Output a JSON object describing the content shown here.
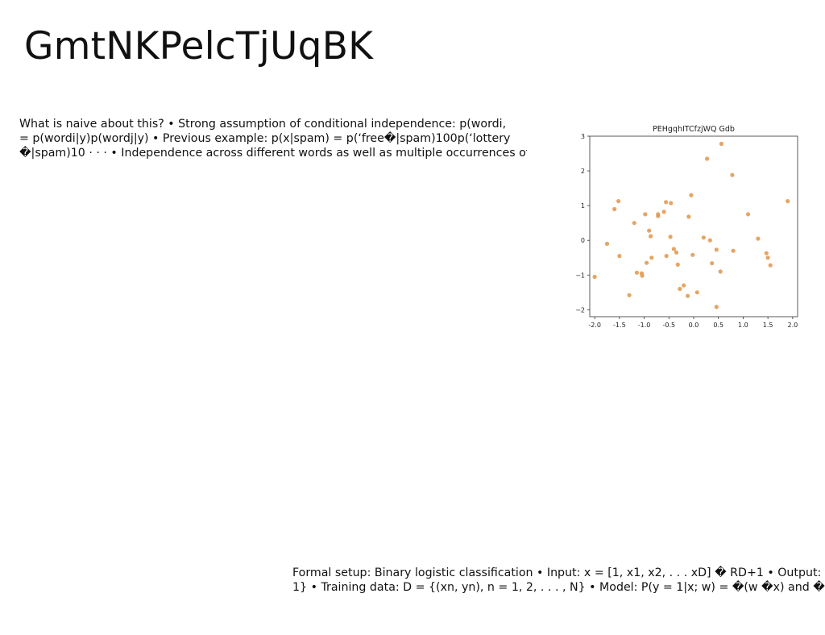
{
  "slide": {
    "title": "GmtNKPelcTjUqBK",
    "paragraph1": [
      "What is naive about this? • Strong assumption of conditional independence: p(wordi,",
      "= p(wordi|y)p(wordj|y) • Previous example: p(x|spam) = p(‘free�|spam)100p(‘lottery",
      "�|spam)10 · · · • Independence across different words as well as multiple occurrences of"
    ],
    "paragraph2": [
      "Formal setup: Binary logistic classification • Input: x = [1, x1, x2, . . . xD] � RD+1 • Output: y �",
      "1} • Training data: D = {(xn, yn), n = 1, 2, . . . , N} • Model: P(y = 1|x; w) = �(w �x) and �[·] stands"
    ]
  },
  "chart_data": {
    "type": "scatter",
    "title": "PEHgqhITCfzjWQ Gdb",
    "xlabel": "",
    "ylabel": "",
    "xlim": [
      -2.1,
      2.1
    ],
    "ylim": [
      -2.2,
      3.0
    ],
    "xticks": [
      "-2.0",
      "-1.5",
      "-1.0",
      "-0.5",
      "0.0",
      "0.5",
      "1.0",
      "1.5",
      "2.0"
    ],
    "yticks": [
      "3",
      "2",
      "1",
      "0",
      "−1",
      "−2"
    ],
    "grid": false,
    "color": "#e0954a",
    "points": [
      [
        -2.0,
        -1.05
      ],
      [
        -1.75,
        -0.1
      ],
      [
        -1.6,
        0.9
      ],
      [
        -1.52,
        1.13
      ],
      [
        -1.5,
        -0.45
      ],
      [
        -1.3,
        -1.58
      ],
      [
        -1.2,
        0.5
      ],
      [
        -1.15,
        -0.93
      ],
      [
        -1.05,
        -0.95
      ],
      [
        -1.04,
        -1.02
      ],
      [
        -0.98,
        0.75
      ],
      [
        -0.95,
        -0.65
      ],
      [
        -0.9,
        0.28
      ],
      [
        -0.87,
        0.12
      ],
      [
        -0.85,
        -0.5
      ],
      [
        -0.72,
        0.75
      ],
      [
        -0.72,
        0.7
      ],
      [
        -0.6,
        0.82
      ],
      [
        -0.56,
        1.1
      ],
      [
        -0.55,
        -0.45
      ],
      [
        -0.47,
        0.1
      ],
      [
        -0.46,
        1.07
      ],
      [
        -0.4,
        -0.25
      ],
      [
        -0.35,
        -0.35
      ],
      [
        -0.32,
        -0.7
      ],
      [
        -0.28,
        -1.4
      ],
      [
        -0.2,
        -1.3
      ],
      [
        -0.12,
        -1.6
      ],
      [
        -0.1,
        0.68
      ],
      [
        -0.05,
        1.3
      ],
      [
        -0.02,
        -0.42
      ],
      [
        0.07,
        -1.5
      ],
      [
        0.2,
        0.08
      ],
      [
        0.27,
        2.35
      ],
      [
        0.33,
        0.0
      ],
      [
        0.37,
        -0.66
      ],
      [
        0.46,
        -0.27
      ],
      [
        0.46,
        -1.92
      ],
      [
        0.54,
        -0.9
      ],
      [
        0.56,
        2.78
      ],
      [
        0.78,
        1.88
      ],
      [
        0.8,
        -0.3
      ],
      [
        1.1,
        0.75
      ],
      [
        1.3,
        0.05
      ],
      [
        1.47,
        -0.37
      ],
      [
        1.5,
        -0.5
      ],
      [
        1.55,
        -0.72
      ],
      [
        1.9,
        1.13
      ]
    ]
  }
}
